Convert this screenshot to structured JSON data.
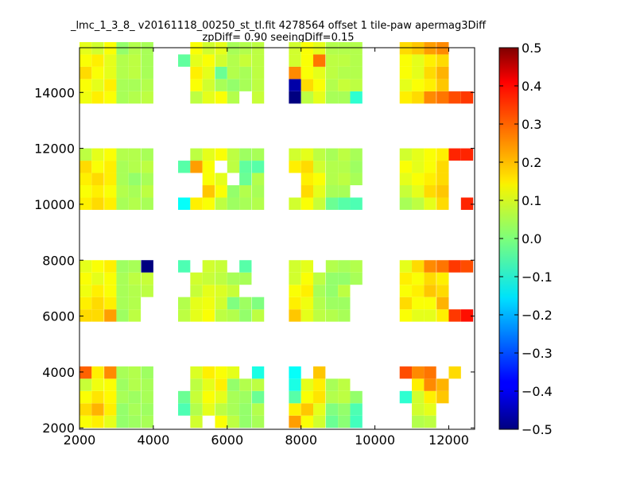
{
  "chart_data": {
    "type": "heatmap",
    "title": "_lmc_1_3_8_ v20161118_00250_st_tl.fit 4278564 offset 1 tile-paw apermag3Diff",
    "subtitle": "zpDiff= 0.90 seeingDiff=0.15",
    "xlabel": "",
    "ylabel": "",
    "xlim": [
      2000,
      12700
    ],
    "ylim": [
      1950,
      15600
    ],
    "x_ticks": [
      2000,
      4000,
      6000,
      8000,
      10000,
      12000
    ],
    "y_ticks": [
      2000,
      4000,
      6000,
      8000,
      10000,
      12000,
      14000
    ],
    "colorbar": {
      "range": [
        -0.5,
        0.5
      ],
      "ticks": [
        -0.5,
        -0.4,
        -0.3,
        -0.2,
        -0.1,
        0.0,
        0.1,
        0.2,
        0.3,
        0.4,
        0.5
      ],
      "tick_labels": [
        "−0.5",
        "−0.4",
        "−0.3",
        "−0.2",
        "−0.1",
        "0.0",
        "0.1",
        "0.2",
        "0.3",
        "0.4",
        "0.5"
      ],
      "colormap": "jet"
    },
    "cell_size": [
      330,
      440
    ],
    "columns_x": [
      2000,
      2330,
      2670,
      3000,
      3330,
      3670,
      4670,
      5000,
      5330,
      5670,
      6000,
      6330,
      6670,
      7000,
      7670,
      8000,
      8330,
      8670,
      9000,
      9330,
      9670,
      10670,
      11000,
      11330,
      11670,
      12000,
      12330
    ],
    "row_groups": [
      {
        "rows_y": [
          2000,
          2440,
          2880,
          3320,
          3760
        ],
        "values": [
          [
            0.12,
            0.14,
            0.1,
            0.02,
            0.03,
            0.04,
            null,
            0.08,
            null,
            0.12,
            0.06,
            0.02,
            0.04,
            null,
            0.22,
            0.12,
            0.08,
            -0.02,
            0.01,
            -0.06,
            null,
            null,
            0.05,
            0.06,
            null,
            null,
            null
          ],
          [
            0.16,
            0.2,
            0.14,
            0.02,
            0.04,
            0.03,
            -0.05,
            0.05,
            0.1,
            0.06,
            0.04,
            0.02,
            0.05,
            null,
            0.14,
            0.18,
            0.1,
            0.0,
            0.02,
            -0.05,
            null,
            null,
            0.08,
            0.1,
            null,
            null,
            null
          ],
          [
            0.12,
            0.15,
            0.13,
            0.04,
            0.03,
            0.04,
            -0.02,
            0.07,
            0.12,
            0.1,
            0.04,
            0.03,
            -0.02,
            null,
            -0.04,
            0.12,
            0.15,
            0.05,
            0.06,
            0.02,
            null,
            -0.08,
            0.08,
            0.14,
            0.18,
            null,
            null
          ],
          [
            0.07,
            0.11,
            0.12,
            0.03,
            0.05,
            0.04,
            null,
            0.06,
            0.1,
            0.14,
            0.02,
            0.05,
            0.06,
            null,
            -0.1,
            0.1,
            0.14,
            0.04,
            0.06,
            null,
            null,
            null,
            0.14,
            0.24,
            0.2,
            null,
            null
          ],
          [
            0.28,
            0.14,
            0.24,
            0.04,
            0.05,
            0.03,
            null,
            0.09,
            0.14,
            0.12,
            0.1,
            null,
            -0.1,
            null,
            -0.12,
            null,
            0.18,
            null,
            null,
            null,
            null,
            0.3,
            0.24,
            0.26,
            null,
            0.16,
            null
          ]
        ]
      },
      {
        "rows_y": [
          5800,
          6240,
          6680,
          7120,
          7560
        ],
        "values": [
          [
            0.16,
            0.16,
            0.22,
            0.03,
            0.06,
            null,
            0.06,
            0.1,
            0.12,
            0.06,
            0.05,
            0.02,
            0.06,
            null,
            0.18,
            0.1,
            0.06,
            0.05,
            0.04,
            null,
            null,
            0.12,
            0.1,
            0.1,
            0.14,
            0.32,
            0.36
          ],
          [
            0.14,
            0.16,
            0.14,
            0.04,
            0.05,
            null,
            0.05,
            0.1,
            0.11,
            0.08,
            0.0,
            0.03,
            0.0,
            null,
            0.14,
            0.11,
            0.05,
            0.03,
            0.03,
            null,
            null,
            0.16,
            0.12,
            0.12,
            0.2,
            null,
            null
          ],
          [
            0.11,
            0.14,
            0.12,
            0.04,
            0.05,
            0.06,
            null,
            0.07,
            0.1,
            0.09,
            0.07,
            null,
            null,
            null,
            0.12,
            0.14,
            0.04,
            0.02,
            0.06,
            null,
            null,
            0.12,
            0.14,
            0.18,
            0.16,
            null,
            null
          ],
          [
            0.12,
            0.1,
            0.12,
            0.04,
            0.06,
            0.07,
            null,
            0.08,
            0.07,
            0.06,
            0.04,
            0.04,
            null,
            null,
            0.08,
            0.12,
            0.06,
            0.02,
            0.02,
            0.04,
            null,
            0.14,
            0.12,
            0.16,
            0.14,
            null,
            null
          ],
          [
            0.1,
            0.12,
            0.14,
            0.03,
            0.04,
            -0.5,
            -0.05,
            null,
            0.08,
            0.07,
            null,
            -0.04,
            null,
            null,
            0.08,
            0.1,
            null,
            0.05,
            0.04,
            0.05,
            null,
            0.1,
            0.16,
            0.24,
            0.26,
            0.32,
            0.3
          ]
        ]
      },
      {
        "rows_y": [
          9800,
          10240,
          10680,
          11120,
          11560
        ],
        "values": [
          [
            0.14,
            0.16,
            0.14,
            0.04,
            0.05,
            0.04,
            -0.12,
            0.14,
            0.12,
            0.06,
            0.03,
            0.04,
            0.05,
            null,
            0.08,
            0.12,
            0.07,
            -0.02,
            -0.04,
            -0.05,
            null,
            0.04,
            0.06,
            0.1,
            0.16,
            null,
            0.34
          ],
          [
            0.12,
            0.14,
            0.12,
            0.05,
            0.04,
            0.06,
            null,
            null,
            0.18,
            0.12,
            0.02,
            0.05,
            0.04,
            null,
            null,
            0.16,
            0.1,
            0.04,
            0.04,
            null,
            null,
            0.07,
            0.1,
            0.16,
            0.18,
            null,
            null
          ],
          [
            0.14,
            0.16,
            0.14,
            0.04,
            0.02,
            0.04,
            null,
            null,
            0.12,
            0.1,
            null,
            -0.02,
            0.05,
            null,
            null,
            0.14,
            0.12,
            0.05,
            0.06,
            0.04,
            null,
            0.1,
            0.12,
            0.14,
            0.16,
            null,
            null
          ],
          [
            0.16,
            0.12,
            0.14,
            0.04,
            0.05,
            0.06,
            -0.04,
            0.22,
            0.12,
            null,
            0.06,
            -0.03,
            -0.04,
            null,
            0.14,
            0.16,
            0.08,
            0.05,
            0.05,
            0.03,
            null,
            0.12,
            0.1,
            0.12,
            0.16,
            null,
            null
          ],
          [
            0.06,
            0.1,
            0.12,
            0.05,
            0.05,
            0.04,
            null,
            0.06,
            0.1,
            0.12,
            0.06,
            0.03,
            0.04,
            null,
            0.08,
            0.1,
            0.06,
            0.04,
            0.06,
            0.04,
            null,
            0.08,
            0.1,
            0.12,
            0.14,
            0.34,
            0.34
          ]
        ]
      },
      {
        "rows_y": [
          13600,
          14040,
          14480,
          14920,
          15360
        ],
        "values": [
          [
            0.11,
            0.14,
            0.12,
            0.04,
            0.05,
            0.06,
            null,
            0.06,
            0.1,
            0.12,
            0.05,
            null,
            0.07,
            null,
            -0.5,
            0.06,
            0.1,
            0.04,
            0.04,
            -0.08,
            null,
            0.14,
            0.16,
            0.24,
            0.26,
            0.3,
            0.32
          ],
          [
            0.12,
            0.1,
            0.14,
            0.04,
            0.04,
            0.05,
            null,
            0.12,
            0.08,
            0.04,
            0.02,
            0.04,
            0.06,
            null,
            -0.46,
            0.16,
            0.12,
            0.05,
            0.07,
            0.06,
            null,
            0.1,
            0.12,
            0.14,
            0.18,
            null,
            null
          ],
          [
            0.16,
            0.12,
            0.1,
            0.05,
            0.06,
            0.04,
            null,
            0.14,
            0.1,
            -0.02,
            0.05,
            0.04,
            0.06,
            null,
            0.24,
            0.12,
            0.1,
            0.06,
            0.05,
            0.05,
            null,
            0.12,
            0.1,
            0.16,
            0.2,
            null,
            null
          ],
          [
            0.12,
            0.14,
            0.1,
            0.05,
            0.06,
            0.04,
            -0.03,
            0.1,
            0.12,
            0.08,
            0.05,
            0.07,
            0.06,
            null,
            0.08,
            0.12,
            0.26,
            0.06,
            0.06,
            0.05,
            null,
            0.12,
            0.1,
            0.14,
            0.16,
            null,
            null
          ],
          [
            0.1,
            0.08,
            0.12,
            0.02,
            0.05,
            0.04,
            null,
            0.12,
            0.08,
            0.1,
            0.04,
            0.05,
            0.06,
            null,
            0.08,
            0.12,
            0.1,
            0.05,
            0.05,
            0.05,
            null,
            0.16,
            0.18,
            0.22,
            0.24,
            null,
            null
          ]
        ]
      }
    ]
  }
}
